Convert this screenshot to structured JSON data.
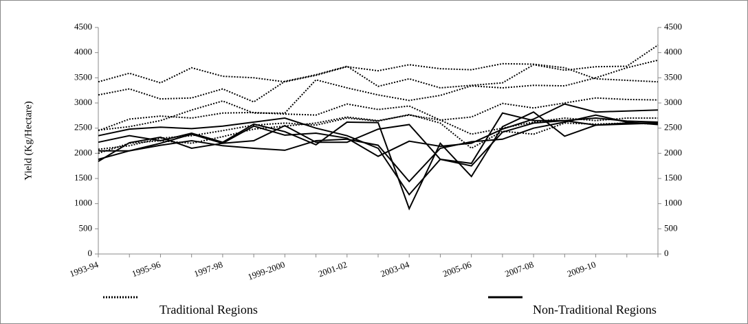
{
  "chart_data": {
    "type": "line",
    "y_label": "Yield (Kg/Hectare)",
    "color": "#000000",
    "legend_position": "bottom",
    "legend": [
      {
        "name": "Traditional Regions",
        "style": "dotted"
      },
      {
        "name": "Non-Traditional Regions",
        "style": "solid"
      }
    ],
    "categories": [
      "1993-94",
      null,
      "1995-96",
      null,
      "1997-98",
      null,
      "1999-2000",
      null,
      "2001-02",
      null,
      "2003-04",
      null,
      "2005-06",
      null,
      "2007-08",
      null,
      "2009-10",
      null,
      null
    ],
    "ylim": [
      0,
      4500
    ],
    "yticks": [
      0,
      500,
      1000,
      1500,
      2000,
      2500,
      3000,
      3500,
      4000,
      4500
    ],
    "y2lim": [
      0,
      4500
    ],
    "y2ticks": [
      0,
      500,
      1000,
      1500,
      2000,
      2500,
      3000,
      3500,
      4000,
      4500
    ],
    "series": [
      {
        "style": "dotted",
        "values": [
          3420,
          3590,
          3400,
          3700,
          3530,
          3500,
          3420,
          3550,
          3720,
          3640,
          3760,
          3680,
          3660,
          3780,
          3770,
          3700,
          3480,
          3450,
          3420
        ]
      },
      {
        "style": "dotted",
        "values": [
          3160,
          3280,
          3080,
          3100,
          3280,
          3020,
          3430,
          3560,
          3730,
          3330,
          3480,
          3300,
          3350,
          3400,
          3760,
          3650,
          3720,
          3730,
          4150
        ]
      },
      {
        "style": "dotted",
        "values": [
          2450,
          2680,
          2740,
          2700,
          2800,
          2810,
          2780,
          2760,
          2980,
          2870,
          2940,
          2660,
          2720,
          2990,
          2900,
          3000,
          3100,
          3070,
          3060
        ]
      },
      {
        "style": "dotted",
        "values": [
          2460,
          2530,
          2650,
          2860,
          3040,
          2800,
          2800,
          3460,
          3300,
          3160,
          3050,
          3150,
          3340,
          3300,
          3350,
          3340,
          3500,
          3700,
          3850
        ]
      },
      {
        "style": "dotted",
        "values": [
          2080,
          2150,
          2300,
          2350,
          2450,
          2560,
          2600,
          2560,
          2700,
          2640,
          2770,
          2600,
          2100,
          2440,
          2380,
          2600,
          2580,
          2600,
          2580
        ]
      },
      {
        "style": "dotted",
        "values": [
          2000,
          2200,
          2250,
          2200,
          2330,
          2480,
          2540,
          2600,
          2720,
          2650,
          2760,
          2660,
          2380,
          2500,
          2620,
          2700,
          2650,
          2700,
          2700
        ]
      },
      {
        "style": "solid",
        "values": [
          2350,
          2480,
          2520,
          2490,
          2540,
          2620,
          2700,
          2500,
          2350,
          2100,
          1180,
          1880,
          1800,
          2800,
          2650,
          2650,
          2560,
          2580,
          2600
        ]
      },
      {
        "style": "solid",
        "values": [
          2220,
          2350,
          2250,
          2400,
          2220,
          2580,
          2430,
          2170,
          2620,
          2610,
          900,
          2200,
          1540,
          2530,
          2820,
          2340,
          2560,
          2600,
          2600
        ]
      },
      {
        "style": "solid",
        "values": [
          1840,
          2210,
          2320,
          2100,
          2200,
          2540,
          2360,
          2400,
          2300,
          1940,
          2240,
          2140,
          2200,
          2480,
          2680,
          2980,
          2820,
          2840,
          2860
        ]
      },
      {
        "style": "solid",
        "values": [
          1880,
          2050,
          2200,
          2380,
          2200,
          2250,
          2550,
          2220,
          2220,
          2480,
          2570,
          1880,
          1750,
          2420,
          2600,
          2650,
          2700,
          2640,
          2620
        ]
      },
      {
        "style": "solid",
        "values": [
          2050,
          2050,
          2160,
          2250,
          2150,
          2100,
          2060,
          2250,
          2280,
          2160,
          1440,
          2100,
          2230,
          2280,
          2500,
          2620,
          2760,
          2620,
          2570
        ]
      }
    ]
  }
}
